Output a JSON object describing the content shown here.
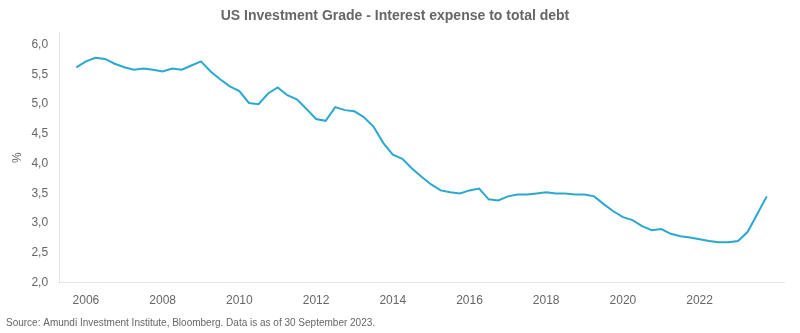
{
  "chart_data": {
    "type": "line",
    "title": "US Investment Grade - Interest expense to total debt",
    "ylabel": "%",
    "annotation": "Source: Amundi Investment Institute, Bloomberg. Data is as of 30 September 2023.",
    "color": "#29a8d0",
    "grid": false,
    "x": [
      2005.75,
      2006.0,
      2006.25,
      2006.5,
      2006.75,
      2007.0,
      2007.25,
      2007.5,
      2007.75,
      2008.0,
      2008.25,
      2008.5,
      2008.75,
      2009.0,
      2009.25,
      2009.5,
      2009.75,
      2010.0,
      2010.25,
      2010.5,
      2010.75,
      2011.0,
      2011.25,
      2011.5,
      2011.75,
      2012.0,
      2012.25,
      2012.5,
      2012.75,
      2013.0,
      2013.25,
      2013.5,
      2013.75,
      2014.0,
      2014.25,
      2014.5,
      2014.75,
      2015.0,
      2015.25,
      2015.5,
      2015.75,
      2016.0,
      2016.25,
      2016.5,
      2016.75,
      2017.0,
      2017.25,
      2017.5,
      2017.75,
      2018.0,
      2018.25,
      2018.5,
      2018.75,
      2019.0,
      2019.25,
      2019.5,
      2019.75,
      2020.0,
      2020.25,
      2020.5,
      2020.75,
      2021.0,
      2021.25,
      2021.5,
      2021.75,
      2022.0,
      2022.25,
      2022.5,
      2022.75,
      2023.0,
      2023.25,
      2023.5,
      2023.75
    ],
    "values": [
      5.62,
      5.72,
      5.78,
      5.76,
      5.68,
      5.62,
      5.58,
      5.6,
      5.58,
      5.55,
      5.6,
      5.58,
      5.65,
      5.72,
      5.55,
      5.42,
      5.3,
      5.22,
      5.02,
      5.0,
      5.18,
      5.28,
      5.15,
      5.08,
      4.92,
      4.75,
      4.72,
      4.95,
      4.9,
      4.88,
      4.78,
      4.62,
      4.35,
      4.15,
      4.08,
      3.92,
      3.78,
      3.65,
      3.55,
      3.52,
      3.5,
      3.55,
      3.58,
      3.4,
      3.38,
      3.45,
      3.48,
      3.48,
      3.5,
      3.52,
      3.5,
      3.5,
      3.48,
      3.48,
      3.45,
      3.32,
      3.2,
      3.1,
      3.05,
      2.95,
      2.88,
      2.9,
      2.82,
      2.78,
      2.76,
      2.73,
      2.7,
      2.68,
      2.68,
      2.7,
      2.85,
      3.15,
      3.45
    ],
    "xlim": [
      2005.3,
      2024.2
    ],
    "xticks": [
      2006,
      2008,
      2010,
      2012,
      2014,
      2016,
      2018,
      2020,
      2022
    ],
    "ylim": [
      2.0,
      6.2
    ],
    "yticks": [
      {
        "value": 2.0,
        "label": "2,0"
      },
      {
        "value": 2.5,
        "label": "2,5"
      },
      {
        "value": 3.0,
        "label": "3,0"
      },
      {
        "value": 3.5,
        "label": "3,5"
      },
      {
        "value": 4.0,
        "label": "4,0"
      },
      {
        "value": 4.5,
        "label": "4,5"
      },
      {
        "value": 5.0,
        "label": "5,0"
      },
      {
        "value": 5.5,
        "label": "5,5"
      },
      {
        "value": 6.0,
        "label": "6,0"
      }
    ]
  }
}
